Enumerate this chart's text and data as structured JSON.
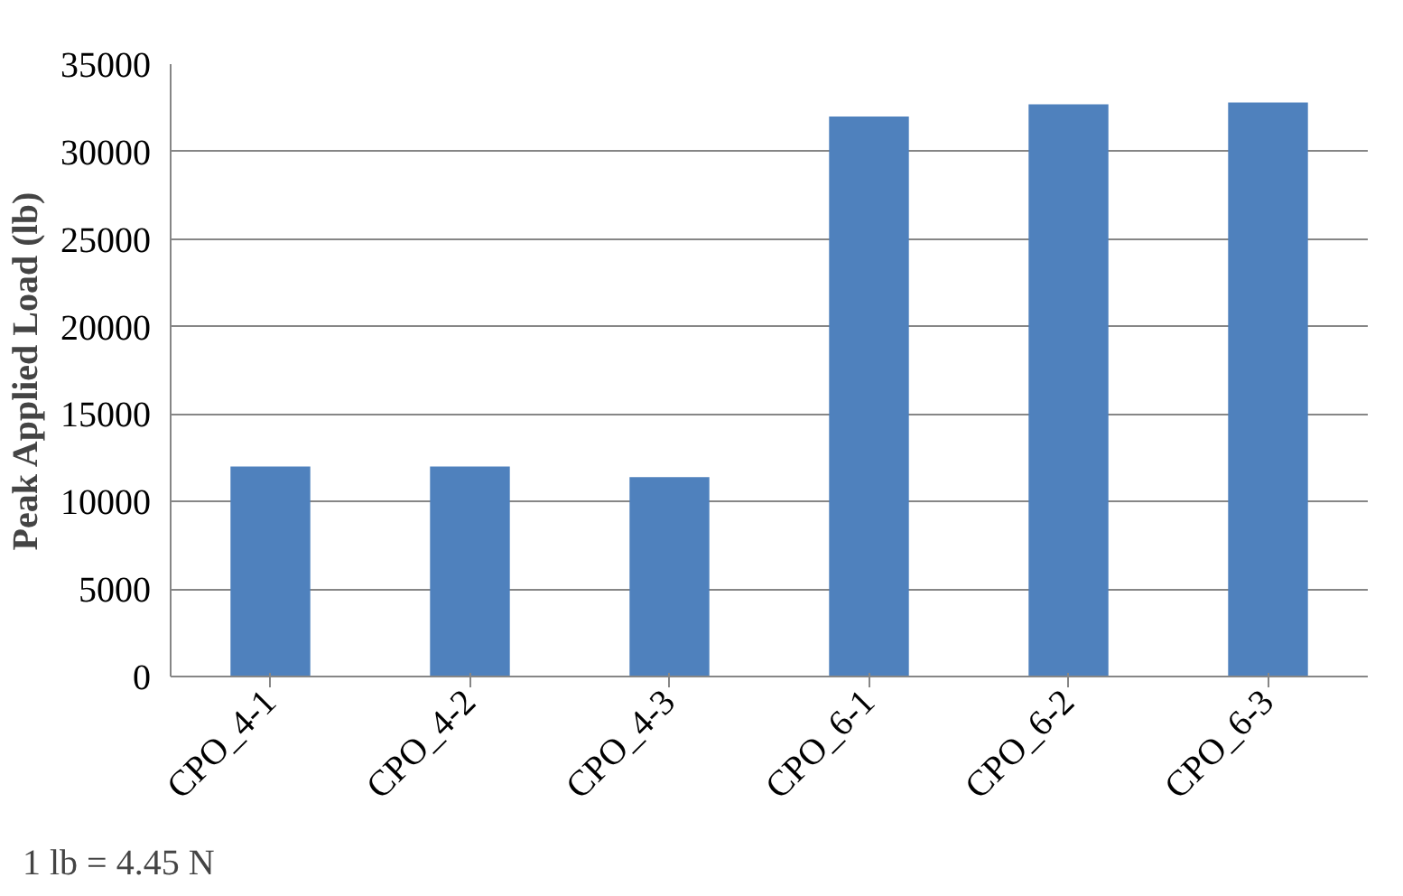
{
  "chart_data": {
    "type": "bar",
    "ylabel": "Peak Applied Load (lb)",
    "categories": [
      "CPO_4-1",
      "CPO_4-2",
      "CPO_4-3",
      "CPO_6-1",
      "CPO_6-2",
      "CPO_6-3"
    ],
    "values": [
      12000,
      12000,
      11400,
      32000,
      32700,
      32800
    ],
    "color": "#4f81bd",
    "ylim": [
      0,
      35000
    ],
    "yticks": [
      0,
      5000,
      10000,
      15000,
      20000,
      25000,
      30000,
      35000
    ],
    "grid": "y",
    "annotations": [
      "1 lb = 4.45 N"
    ]
  }
}
